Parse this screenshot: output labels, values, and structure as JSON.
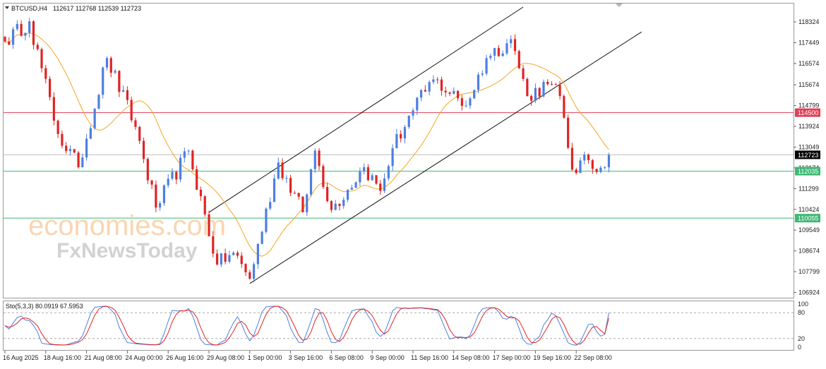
{
  "header": {
    "title": "BTCUSD,H4",
    "ohlc": "112617 112768 112539 112723"
  },
  "indicator": {
    "label": "Sto(5,3,3) 80.0919 67.5953",
    "ticks": [
      "100",
      "80",
      "20",
      "0"
    ]
  },
  "watermark": {
    "line1": "economies.com",
    "line2": "FxNewsToday"
  },
  "price_badges": {
    "current": "112723",
    "resistance": "114500",
    "support1": "112035",
    "support2": "110055"
  },
  "colors": {
    "bull": "#4d7fe0",
    "bear": "#e02424",
    "ma": "#f5a623",
    "resistance_line": "#e23e57",
    "support_line": "#3db873",
    "current_line": "#bfbfbf",
    "channel": "#111111",
    "stoch_k": "#4d7fe0",
    "stoch_d": "#e02424"
  },
  "chart_data": {
    "type": "candlestick",
    "symbol": "BTCUSD",
    "timeframe": "H4",
    "y_ticks": [
      118324,
      117449,
      116574,
      115674,
      114799,
      113924,
      113049,
      112174,
      111299,
      110424,
      109549,
      108674,
      107799,
      106924
    ],
    "ylim": [
      106700,
      118950
    ],
    "x_ticks": [
      {
        "label": "16 Aug 2025",
        "bar": 0
      },
      {
        "label": "18 Aug 16:00",
        "bar": 10
      },
      {
        "label": "21 Aug 08:00",
        "bar": 20
      },
      {
        "label": "24 Aug 00:00",
        "bar": 30
      },
      {
        "label": "26 Aug 16:00",
        "bar": 40
      },
      {
        "label": "29 Aug 08:00",
        "bar": 50
      },
      {
        "label": "1 Sep 00:00",
        "bar": 60
      },
      {
        "label": "3 Sep 16:00",
        "bar": 70
      },
      {
        "label": "6 Sep 08:00",
        "bar": 80
      },
      {
        "label": "9 Sep 00:00",
        "bar": 90
      },
      {
        "label": "11 Sep 16:00",
        "bar": 100
      },
      {
        "label": "14 Sep 08:00",
        "bar": 110
      },
      {
        "label": "17 Sep 00:00",
        "bar": 120
      },
      {
        "label": "19 Sep 16:00",
        "bar": 130
      },
      {
        "label": "22 Sep 08:00",
        "bar": 140
      }
    ],
    "horizontal_levels": [
      {
        "value": 114500,
        "role": "resistance"
      },
      {
        "value": 112723,
        "role": "current"
      },
      {
        "value": 112035,
        "role": "support"
      },
      {
        "value": 110055,
        "role": "support"
      }
    ],
    "channel_lines": [
      {
        "from": {
          "bar": 50,
          "price": 110300
        },
        "to": {
          "bar": 127,
          "price": 118950
        }
      },
      {
        "from": {
          "bar": 60,
          "price": 107300
        },
        "to": {
          "bar": 156,
          "price": 117900
        }
      }
    ],
    "key_points": [
      {
        "bar": 0,
        "price": 117500
      },
      {
        "bar": 6,
        "price": 118350
      },
      {
        "bar": 13,
        "price": 113600
      },
      {
        "bar": 18,
        "price": 112200
      },
      {
        "bar": 25,
        "price": 116800
      },
      {
        "bar": 32,
        "price": 113900
      },
      {
        "bar": 37,
        "price": 110500
      },
      {
        "bar": 45,
        "price": 112900
      },
      {
        "bar": 52,
        "price": 108100
      },
      {
        "bar": 56,
        "price": 108600
      },
      {
        "bar": 60,
        "price": 107500
      },
      {
        "bar": 67,
        "price": 112400
      },
      {
        "bar": 73,
        "price": 110300
      },
      {
        "bar": 76,
        "price": 112900
      },
      {
        "bar": 80,
        "price": 110400
      },
      {
        "bar": 88,
        "price": 112200
      },
      {
        "bar": 92,
        "price": 111200
      },
      {
        "bar": 95,
        "price": 113000
      },
      {
        "bar": 100,
        "price": 114600
      },
      {
        "bar": 105,
        "price": 115900
      },
      {
        "bar": 113,
        "price": 114800
      },
      {
        "bar": 118,
        "price": 116800
      },
      {
        "bar": 124,
        "price": 117600
      },
      {
        "bar": 128,
        "price": 115200
      },
      {
        "bar": 133,
        "price": 115700
      },
      {
        "bar": 136,
        "price": 115200
      },
      {
        "bar": 139,
        "price": 112100
      },
      {
        "bar": 143,
        "price": 112500
      },
      {
        "bar": 145,
        "price": 112000
      },
      {
        "bar": 148,
        "price": 112723
      }
    ],
    "stochastic": {
      "k_period": 5,
      "d_period": 3,
      "slowing": 3,
      "k_last": 80.0919,
      "d_last": 67.5953,
      "levels": [
        80,
        20
      ],
      "ylim": [
        0,
        100
      ]
    }
  }
}
